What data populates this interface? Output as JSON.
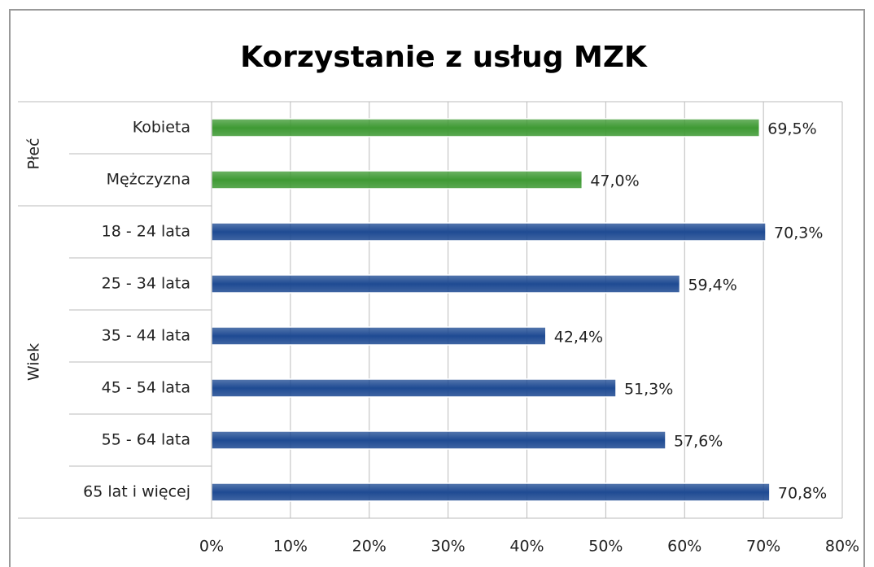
{
  "chart_data": {
    "type": "bar",
    "orientation": "horizontal",
    "title": "Korzystanie z usług MZK",
    "groups": [
      {
        "name": "Płeć",
        "color": "#3f9a34",
        "categories": [
          "Kobieta",
          "Mężczyzna"
        ],
        "values": [
          69.5,
          47.0
        ],
        "value_labels": [
          "69,5%",
          "47,0%"
        ]
      },
      {
        "name": "Wiek",
        "color": "#1f4b93",
        "categories": [
          "18 - 24 lata",
          "25 - 34 lata",
          "35 - 44 lata",
          "45 - 54 lata",
          "55 - 64 lata",
          "65 lat i więcej"
        ],
        "values": [
          70.3,
          59.4,
          42.4,
          51.3,
          57.6,
          70.8
        ],
        "value_labels": [
          "70,3%",
          "59,4%",
          "42,4%",
          "51,3%",
          "57,6%",
          "70,8%"
        ]
      }
    ],
    "xlim": [
      0,
      80
    ],
    "xticks": [
      {
        "value": 0,
        "label": "0%"
      },
      {
        "value": 10,
        "label": "10%"
      },
      {
        "value": 20,
        "label": "20%"
      },
      {
        "value": 30,
        "label": "30%"
      },
      {
        "value": 40,
        "label": "40%"
      },
      {
        "value": 50,
        "label": "50%"
      },
      {
        "value": 60,
        "label": "60%"
      },
      {
        "value": 70,
        "label": "70%"
      },
      {
        "value": 80,
        "label": "80%"
      }
    ],
    "grid": true
  }
}
